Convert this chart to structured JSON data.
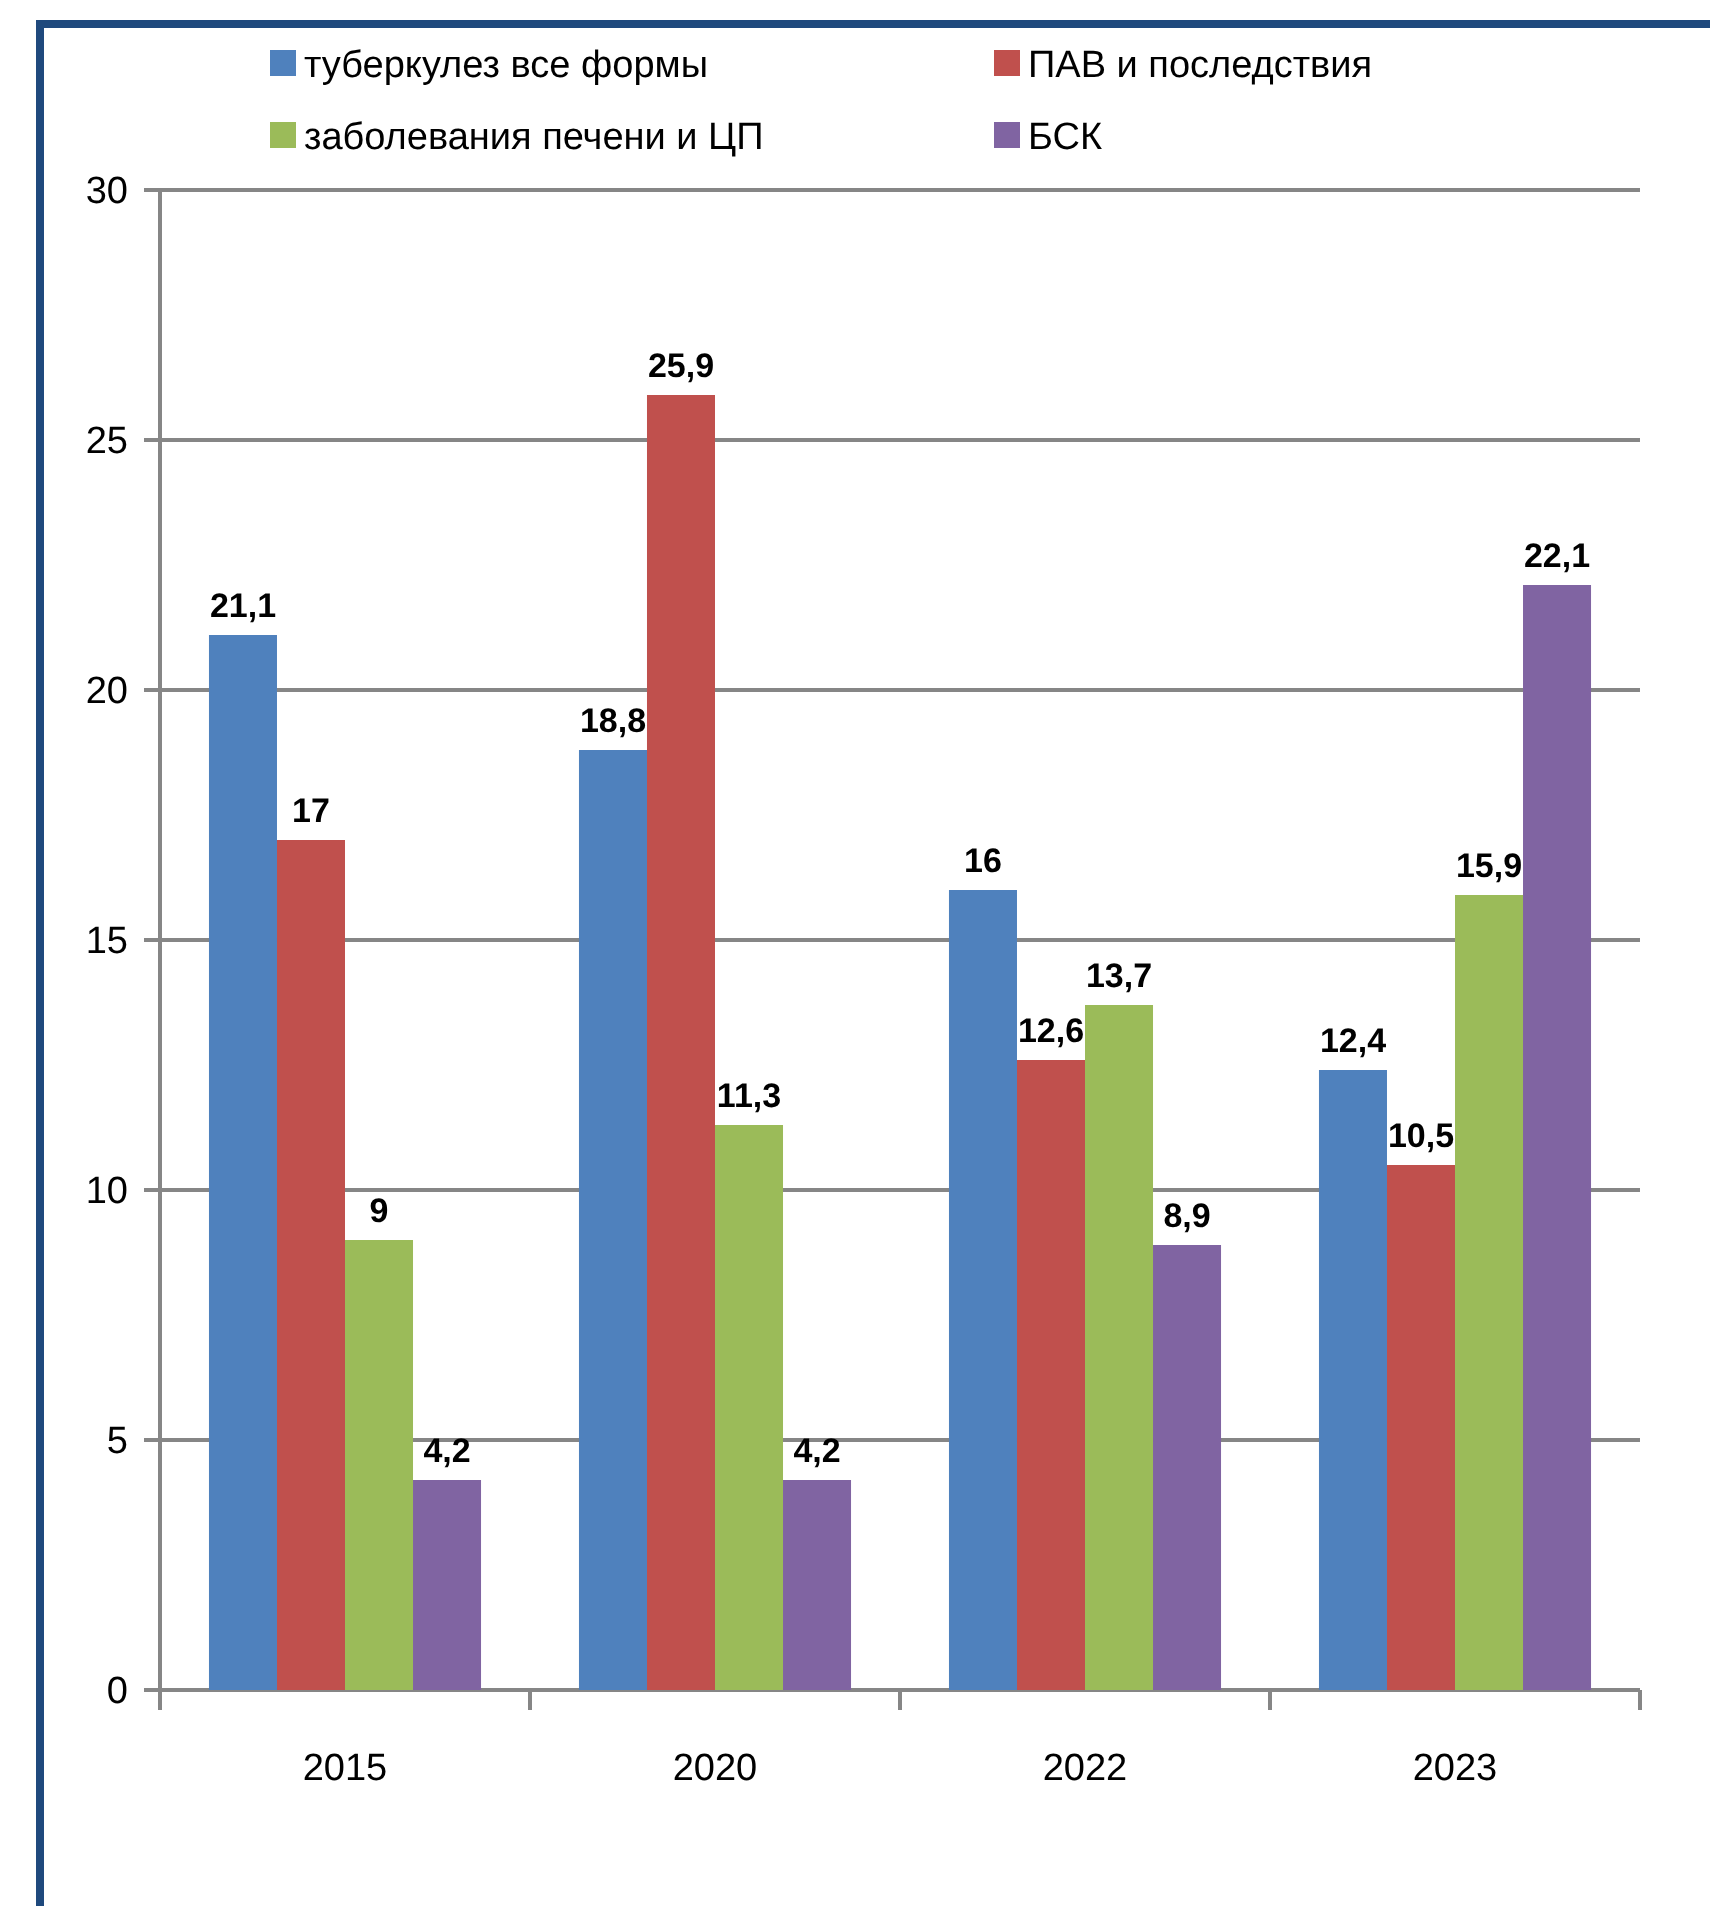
{
  "chart_data": {
    "type": "bar",
    "categories": [
      "2015",
      "2020",
      "2022",
      "2023"
    ],
    "series": [
      {
        "name": "туберкулез все формы",
        "color": "#4f81bd",
        "values": [
          21.1,
          18.8,
          16,
          12.4
        ],
        "value_labels": [
          "21,1",
          "18,8",
          "16",
          "12,4"
        ]
      },
      {
        "name": "ПАВ и последствия",
        "color": "#c0504d",
        "values": [
          17,
          25.9,
          12.6,
          10.5
        ],
        "value_labels": [
          "17",
          "25,9",
          "12,6",
          "10,5"
        ]
      },
      {
        "name": "заболевания печени и ЦП",
        "color": "#9bbb59",
        "values": [
          9,
          11.3,
          13.7,
          15.9
        ],
        "value_labels": [
          "9",
          "11,3",
          "13,7",
          "15,9"
        ]
      },
      {
        "name": "БСК",
        "color": "#8064a2",
        "values": [
          4.2,
          4.2,
          8.9,
          22.1
        ],
        "value_labels": [
          "4,2",
          "4,2",
          "8,9",
          "22,1"
        ]
      }
    ],
    "ylim": [
      0,
      30
    ],
    "yticks": [
      0,
      5,
      10,
      15,
      20,
      25,
      30
    ],
    "grid": "y",
    "legend": "top"
  }
}
